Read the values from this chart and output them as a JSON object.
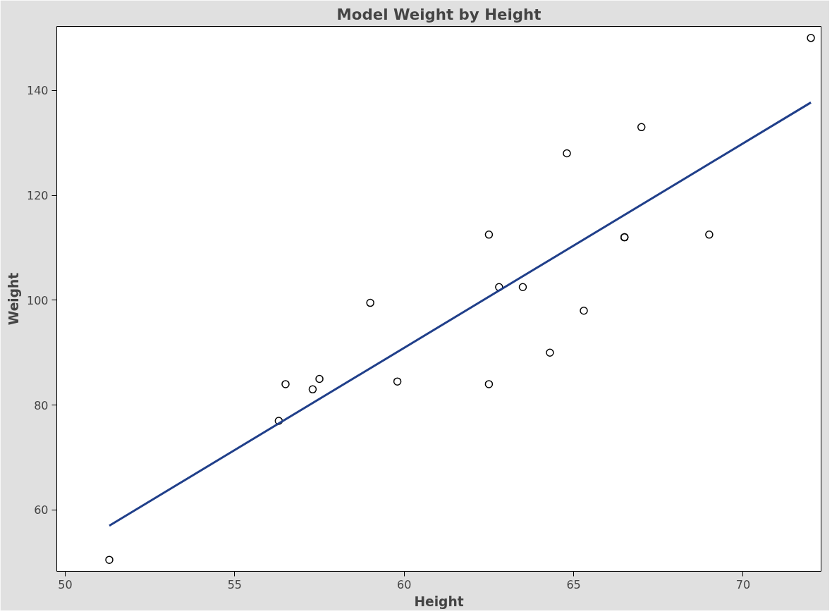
{
  "chart_data": {
    "type": "scatter",
    "title": "Model Weight by Height",
    "xlabel": "Height",
    "ylabel": "Weight",
    "xlim": [
      49.75,
      72.3
    ],
    "ylim": [
      48.3,
      152.2
    ],
    "xticks": [
      50,
      55,
      60,
      65,
      70
    ],
    "yticks": [
      60,
      80,
      100,
      120,
      140
    ],
    "series": [
      {
        "marker": "circle",
        "color": "#000000",
        "x": [
          69.0,
          56.5,
          65.3,
          62.8,
          63.5,
          57.3,
          59.8,
          62.5,
          62.5,
          59.0,
          51.3,
          64.3,
          56.3,
          66.5,
          72.0,
          64.8,
          67.0,
          57.5,
          66.5
        ],
        "values": [
          112.5,
          84.0,
          98.0,
          102.5,
          102.5,
          83.0,
          84.5,
          112.5,
          84.0,
          99.5,
          50.5,
          90.0,
          77.0,
          112.0,
          150.0,
          128.0,
          133.0,
          85.0,
          112.0
        ]
      },
      {
        "type": "line",
        "color": "#203f8a",
        "x": [
          51.3,
          72.0
        ],
        "values": [
          57.0,
          137.7
        ]
      }
    ]
  }
}
